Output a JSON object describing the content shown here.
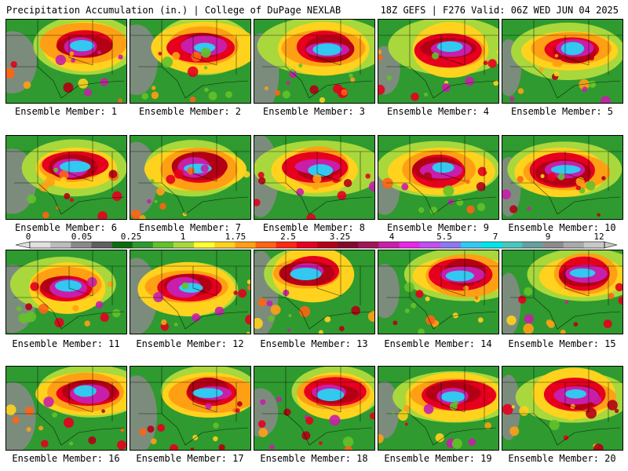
{
  "header": {
    "left_title": "Precipitation Accumulation (in.) | College of DuPage NEXLAB",
    "right_title": "18Z GEFS | F276 Valid: 06Z WED JUN 04 2025"
  },
  "colorbar": {
    "labels": [
      "0",
      "0.05",
      "0.25",
      "1",
      "1.75",
      "2.5",
      "3.25",
      "4",
      "5.5",
      "7",
      "9",
      "12"
    ],
    "colors": [
      "#e0e0e0",
      "#bcbcbc",
      "#8a8a8a",
      "#5f5f5f",
      "#0f6b0f",
      "#2f9a2f",
      "#63c22a",
      "#a8d83c",
      "#ffff32",
      "#ffd21e",
      "#ffa014",
      "#ff6414",
      "#ff2814",
      "#e6001e",
      "#b40014",
      "#820a2a",
      "#a0145a",
      "#c81eaa",
      "#e628e6",
      "#be50f0",
      "#8c78f0",
      "#32c8f0",
      "#00e6e6",
      "#46c8be",
      "#64a0a0",
      "#8c8c8c",
      "#aaaaaa",
      "#c8c8c8"
    ]
  },
  "panels": [
    {
      "label": "Ensemble Member: 1"
    },
    {
      "label": "Ensemble Member: 2"
    },
    {
      "label": "Ensemble Member: 3"
    },
    {
      "label": "Ensemble Member: 4"
    },
    {
      "label": "Ensemble Member: 5"
    },
    {
      "label": "Ensemble Member: 6"
    },
    {
      "label": "Ensemble Member: 7"
    },
    {
      "label": "Ensemble Member: 8"
    },
    {
      "label": "Ensemble Member: 9"
    },
    {
      "label": "Ensemble Member: 10"
    },
    {
      "label": "Ensemble Member: 11"
    },
    {
      "label": "Ensemble Member: 12"
    },
    {
      "label": "Ensemble Member: 13"
    },
    {
      "label": "Ensemble Member: 14"
    },
    {
      "label": "Ensemble Member: 15"
    },
    {
      "label": "Ensemble Member: 16"
    },
    {
      "label": "Ensemble Member: 17"
    },
    {
      "label": "Ensemble Member: 18"
    },
    {
      "label": "Ensemble Member: 19"
    },
    {
      "label": "Ensemble Member: 20"
    }
  ]
}
